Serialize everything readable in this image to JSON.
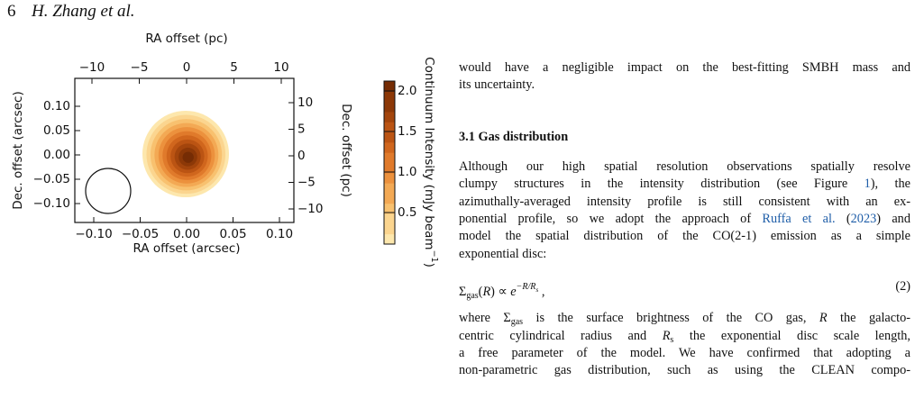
{
  "header": {
    "page": "6",
    "authors": "H. Zhang et al."
  },
  "figure": {
    "x_label": "RA offset (arcsec)",
    "x2_label": "RA offset (pc)",
    "y_label": "Dec. offset (arcsec)",
    "y2_label": "Dec. offset (pc)",
    "colorbar_label": [
      {
        "text": "Continuum Intensity (mJy beam"
      },
      {
        "text": "−1",
        "style": "sup"
      },
      {
        "text": ")"
      }
    ],
    "xticks": [
      {
        "value": -0.1,
        "label": "−0.10"
      },
      {
        "value": -0.05,
        "label": "−0.05"
      },
      {
        "value": 0,
        "label": "0.00"
      },
      0.05,
      {
        "value": 0.1,
        "label": "0.10"
      }
    ],
    "yticks": [
      {
        "value": -0.1,
        "label": "−0.10"
      },
      {
        "value": -0.05,
        "label": "−0.05"
      },
      {
        "value": 0,
        "label": "0.00"
      },
      0.05,
      {
        "value": 0.1,
        "label": "0.10"
      }
    ],
    "x2ticks": [
      {
        "value": -10,
        "label": "−10"
      },
      {
        "value": -5,
        "label": "−5"
      },
      0,
      5,
      10
    ],
    "y2ticks": [
      {
        "value": -10,
        "label": "−10"
      },
      {
        "value": -5,
        "label": "−5"
      },
      0,
      5,
      10
    ],
    "colorbar_ticks": [
      0.5,
      {
        "value": 1,
        "label": "1.0"
      },
      1.5,
      {
        "value": 2,
        "label": "2.0"
      }
    ]
  },
  "body": {
    "paragraphs": [
      [
        [
          {
            "text": "would have a negligible impact on the best-fitting SMBH mass and"
          }
        ],
        [
          {
            "text": "its uncertainty."
          }
        ]
      ]
    ],
    "section": "3.1  Gas distribution",
    "paragraphs2": [
      [
        [
          {
            "text": "Although our high spatial resolution observations spatially resolve"
          }
        ],
        [
          {
            "text": "clumpy structures in the intensity distribution (see Figure "
          },
          {
            "text": "1",
            "style": "link"
          },
          {
            "text": "), the"
          }
        ],
        [
          {
            "text": "azimuthally-averaged intensity profile is still consistent with an ex-"
          }
        ],
        [
          {
            "text": "ponential profile, so we adopt the approach of "
          },
          {
            "text": "Ruffa et al.",
            "style": "link"
          },
          {
            "text": " ("
          },
          {
            "text": "2023",
            "style": "link"
          },
          {
            "text": ") and"
          }
        ],
        [
          {
            "text": "model the spatial distribution of the CO(2-1) emission as a simple"
          }
        ],
        [
          {
            "text": "exponential disc:"
          }
        ]
      ]
    ],
    "equation": {
      "parts": [
        {
          "text": "Σ"
        },
        {
          "text": "gas",
          "style": "sub"
        },
        {
          "text": "("
        },
        {
          "text": "R",
          "style": "italic"
        },
        {
          "text": ") ∝ "
        },
        {
          "text": "e",
          "style": "italic"
        },
        {
          "text": "−R/R",
          "style": "sup"
        },
        {
          "text": "s",
          "style": "supsub"
        },
        {
          "text": "  ,"
        }
      ],
      "number": "(2)"
    },
    "paragraphs3": [
      [
        [
          {
            "text": "where Σ"
          },
          {
            "text": "gas",
            "style": "sub"
          },
          {
            "text": " is the surface brightness of the CO gas, "
          },
          {
            "text": "R",
            "style": "italic"
          },
          {
            "text": " the galacto-"
          }
        ],
        [
          {
            "text": "centric cylindrical radius and "
          },
          {
            "text": "R",
            "style": "italic"
          },
          {
            "text": "s",
            "style": "sub"
          },
          {
            "text": " the exponential disc scale length,"
          }
        ],
        [
          {
            "text": "a free parameter of the model. We have confirmed that adopting a"
          }
        ],
        [
          {
            "text": "non-parametric gas distribution, such as using the CLEAN compo-"
          }
        ]
      ]
    ]
  }
}
